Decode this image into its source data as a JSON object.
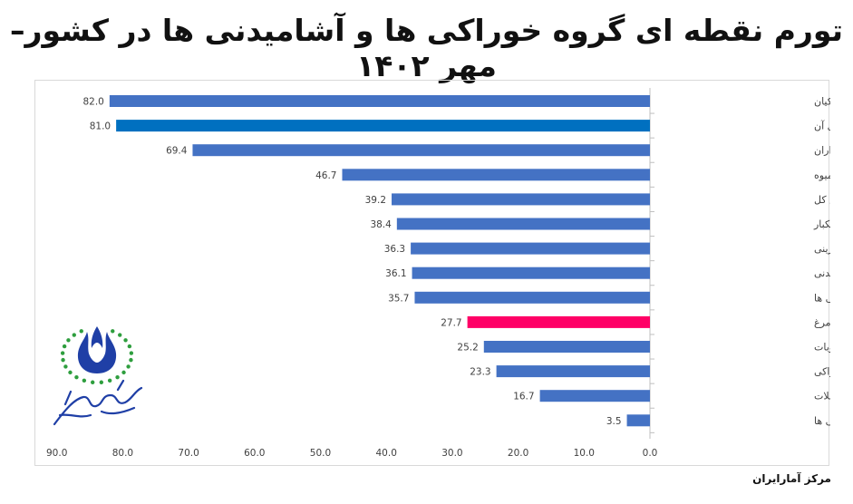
{
  "title": "تورم نقطه ای گروه خوراکی ها و آشامیدنی ها در کشور– مهر ۱۴۰۲",
  "source": "مرکز آمارایران",
  "colors": {
    "default_bar": "#4472c4",
    "highlight_blue": "#0070c0",
    "highlight_pink": "#ff0066",
    "grid": "#d9d9d9",
    "text": "#404040"
  },
  "chart_data": {
    "type": "bar",
    "orientation": "horizontal-reversed",
    "title": "تورم نقطه ای گروه خوراکی ها و آشامیدنی ها در کشور– مهر ۱۴۰۲",
    "categories": [
      "گوشت قرمز و گوشت ماکیان",
      "گوشت قرمز، سفید و فرآورده های آن",
      "ماهی ها و صدف داران",
      "چای، قهوه، کاکائو، نوشابه و آب میوه",
      "شاخص کل",
      "میوه و خشکبار",
      "شکر، مربا، عسل، شکلات و شیرینی",
      "خوراکی ها و آشامیدنی",
      "خوراکی ها",
      "شیر، پنیر و تخم مرغ",
      "سبزیجات و حبوبات",
      "سایر محصولات خوراکی",
      "نان و غلات",
      "روغن ها و چربی ها"
    ],
    "values": [
      82.0,
      81.0,
      69.4,
      46.7,
      39.2,
      38.4,
      36.3,
      36.1,
      35.7,
      27.7,
      25.2,
      23.3,
      16.7,
      3.5
    ],
    "value_labels": [
      "82.0",
      "81.0",
      "69.4",
      "46.7",
      "39.2",
      "38.4",
      "36.3",
      "36.1",
      "35.7",
      "27.7",
      "25.2",
      "23.3",
      "16.7",
      "3.5"
    ],
    "bar_colors": [
      "#4472c4",
      "#0070c0",
      "#4472c4",
      "#4472c4",
      "#4472c4",
      "#4472c4",
      "#4472c4",
      "#4472c4",
      "#4472c4",
      "#ff0066",
      "#4472c4",
      "#4472c4",
      "#4472c4",
      "#4472c4"
    ],
    "xlim": [
      0,
      90
    ],
    "x_ticks": [
      "0.0",
      "10.0",
      "20.0",
      "30.0",
      "40.0",
      "50.0",
      "60.0",
      "70.0",
      "80.0",
      "90.0"
    ],
    "x_axis_direction": "right-to-left",
    "xlabel": "",
    "ylabel": "",
    "grid": false,
    "legend": "none"
  }
}
